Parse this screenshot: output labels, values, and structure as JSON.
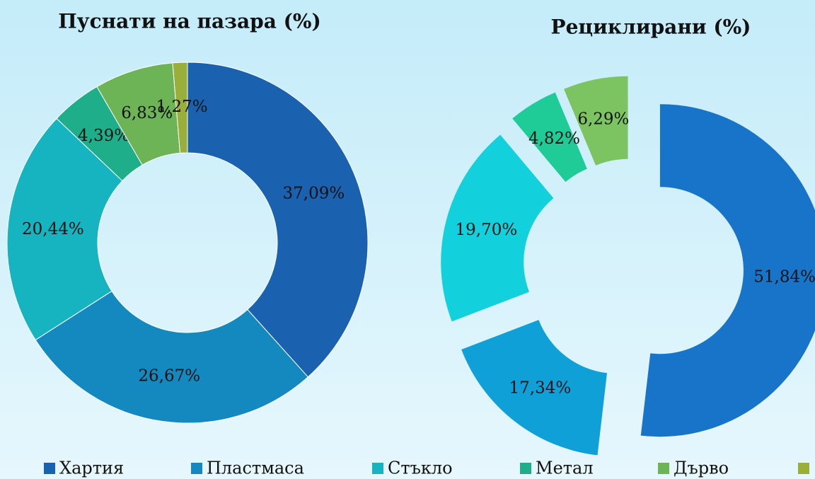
{
  "chart_data": [
    {
      "type": "donut",
      "title": "Пуснати на пазара (%)",
      "categories": [
        "Хартия",
        "Пластмаса",
        "Стъкло",
        "Метал",
        "Дърво",
        null
      ],
      "values": [
        37.09,
        26.67,
        20.44,
        4.39,
        6.83,
        1.27
      ],
      "value_labels": [
        "37,09%",
        "26,67%",
        "20,44%",
        "4,39%",
        "6,83%",
        "1,27%"
      ],
      "colors": [
        "#1a62b0",
        "#1489bf",
        "#16b4c0",
        "#1fae8a",
        "#6db456",
        "#9aae3c"
      ],
      "legend": "bottom"
    },
    {
      "type": "donut",
      "title": "Рециклирани (%)",
      "exploded": true,
      "values": [
        51.84,
        17.34,
        19.7,
        4.82,
        6.29
      ],
      "value_labels": [
        "51,84%",
        "17,34%",
        "19,70%",
        "4,82%",
        "6,29%"
      ],
      "colors": [
        "#1874c9",
        "#10a0d8",
        "#12d0dc",
        "#1fcc98",
        "#7cc462"
      ]
    }
  ]
}
